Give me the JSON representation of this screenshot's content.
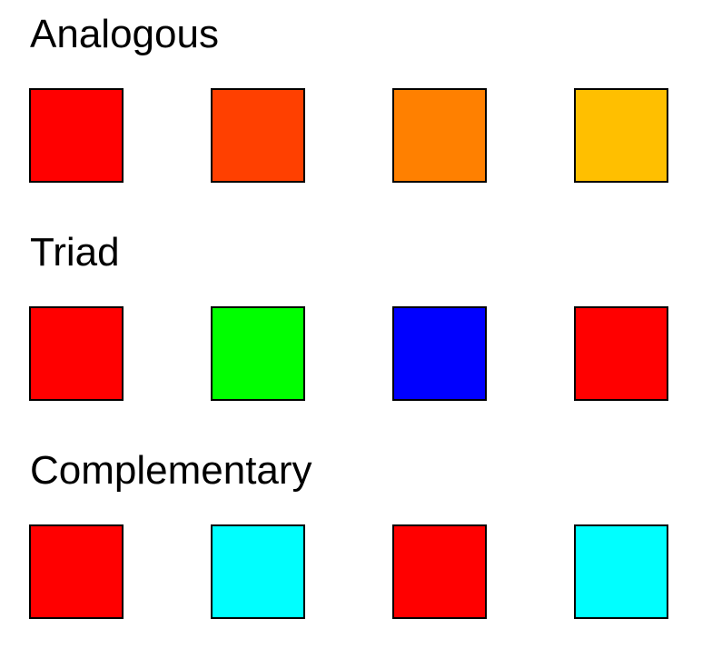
{
  "groups": [
    {
      "title": "Analogous",
      "swatches": [
        "#ff0000",
        "#ff4000",
        "#ff8000",
        "#ffbf00"
      ]
    },
    {
      "title": "Triad",
      "swatches": [
        "#ff0000",
        "#00ff00",
        "#0000ff",
        "#ff0000"
      ]
    },
    {
      "title": "Complementary",
      "swatches": [
        "#ff0000",
        "#00ffff",
        "#ff0000",
        "#00ffff"
      ]
    }
  ]
}
